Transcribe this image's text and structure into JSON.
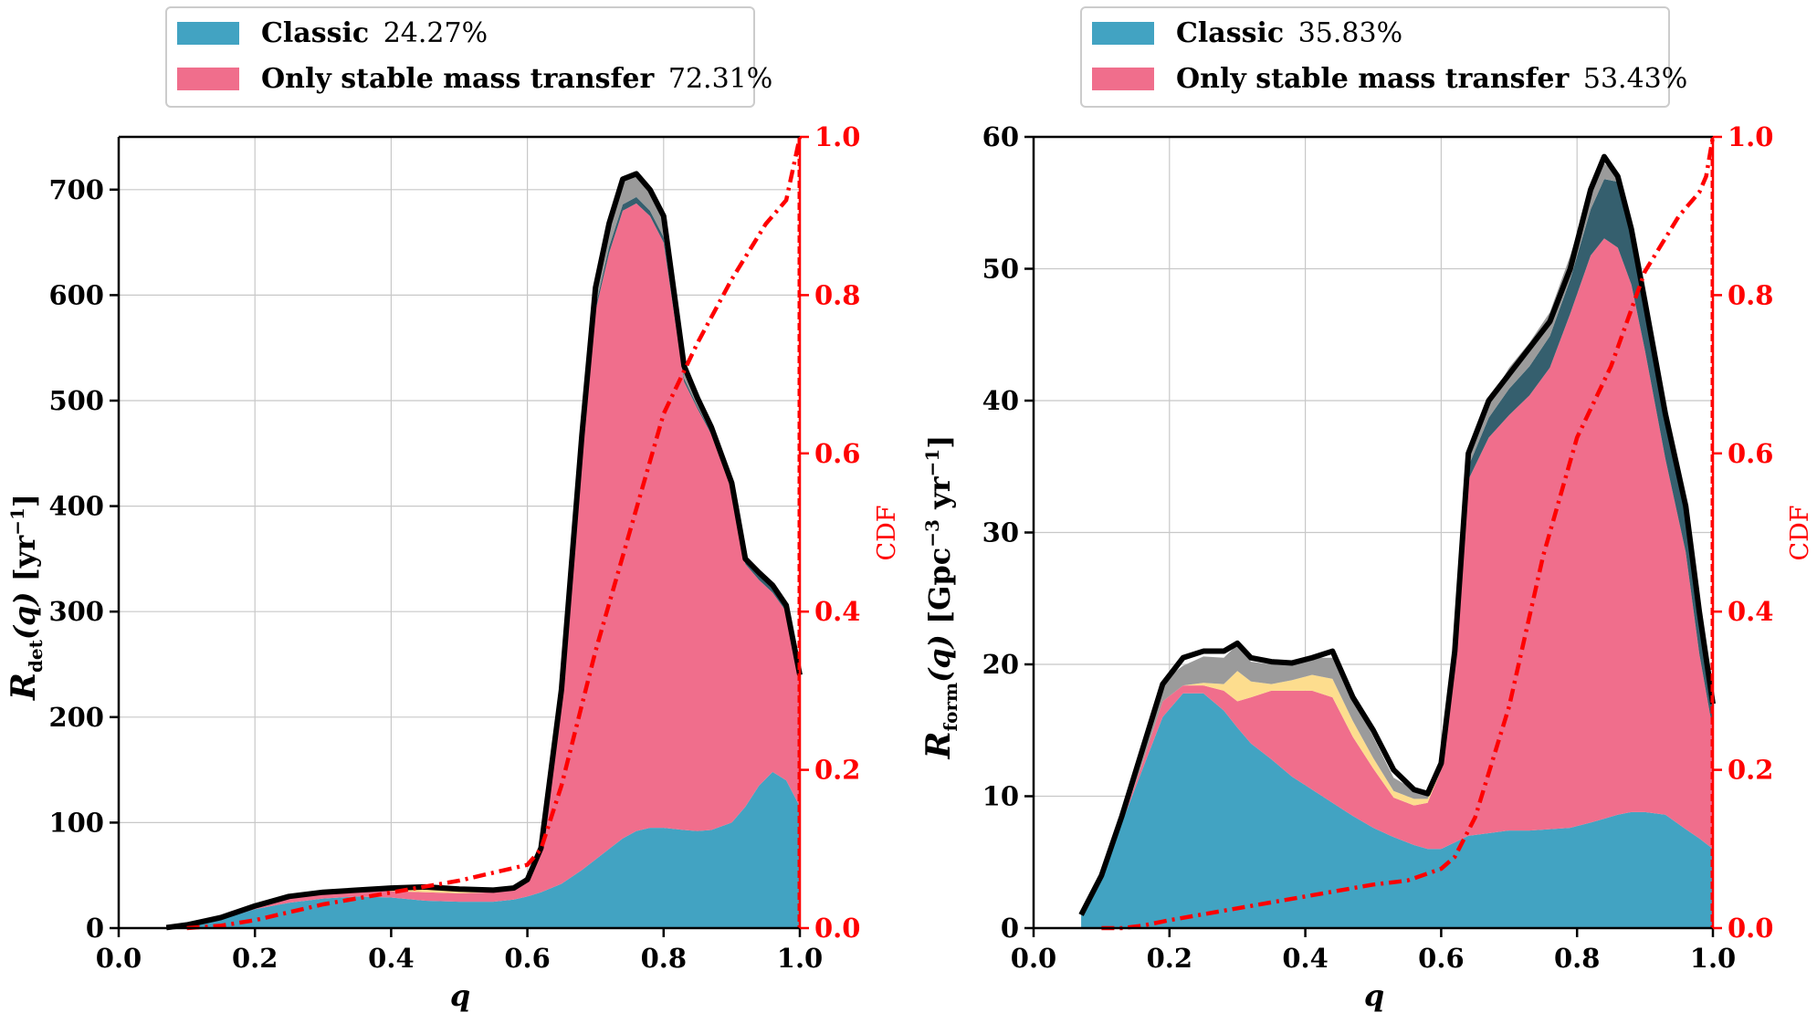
{
  "colors": {
    "classic": "#42a3c2",
    "stable": "#f06e8c",
    "yellow": "#fddd8e",
    "dark": "#355f6e",
    "grey": "#9b9b9b",
    "total": "#000000",
    "cdf": "#ff0000",
    "grid": "#c8c8c8"
  },
  "chart_data": [
    {
      "type": "area",
      "panel": "left",
      "ylabel": "R_det(q) [yr^-1]",
      "xlabel": "q",
      "y2label": "CDF",
      "xlim": [
        0.0,
        1.0
      ],
      "ylim": [
        0,
        750
      ],
      "y2lim": [
        0.0,
        1.0
      ],
      "xticks": [
        "0.0",
        "0.2",
        "0.4",
        "0.6",
        "0.8",
        "1.0"
      ],
      "yticks": [
        "0",
        "100",
        "200",
        "300",
        "400",
        "500",
        "600",
        "700"
      ],
      "y2ticks": [
        "0.0",
        "0.2",
        "0.4",
        "0.6",
        "0.8",
        "1.0"
      ],
      "grid": true,
      "legend": {
        "placement": "above",
        "entries": [
          {
            "label": "Classic",
            "value": "24.27%",
            "color_key": "classic"
          },
          {
            "label": "Only stable mass transfer",
            "value": "72.31%",
            "color_key": "stable"
          }
        ]
      },
      "x": [
        0.07,
        0.1,
        0.15,
        0.2,
        0.25,
        0.3,
        0.35,
        0.4,
        0.45,
        0.5,
        0.55,
        0.58,
        0.6,
        0.62,
        0.65,
        0.68,
        0.7,
        0.72,
        0.74,
        0.76,
        0.78,
        0.8,
        0.83,
        0.85,
        0.87,
        0.9,
        0.92,
        0.94,
        0.96,
        0.98,
        1.0
      ],
      "series": [
        {
          "name": "Classic",
          "color_key": "classic",
          "values": [
            0,
            2,
            8,
            18,
            24,
            28,
            30,
            29,
            26,
            25,
            25,
            27,
            30,
            34,
            42,
            55,
            65,
            75,
            85,
            92,
            95,
            95,
            93,
            92,
            93,
            100,
            115,
            135,
            148,
            140,
            115
          ]
        },
        {
          "name": "Only stable mass transfer",
          "color_key": "stable",
          "values": [
            0,
            0,
            0,
            2,
            5,
            6,
            5,
            6,
            8,
            8,
            9,
            10,
            15,
            40,
            180,
            400,
            520,
            565,
            595,
            595,
            580,
            555,
            425,
            400,
            375,
            315,
            230,
            195,
            170,
            160,
            120
          ]
        },
        {
          "name": "",
          "color_key": "yellow",
          "values": [
            0,
            0,
            0,
            0,
            0,
            0,
            0,
            2,
            4,
            3,
            1,
            0,
            0,
            0,
            0,
            0,
            0,
            0,
            0,
            0,
            0,
            0,
            0,
            0,
            0,
            0,
            0,
            0,
            0,
            0,
            0
          ]
        },
        {
          "name": "",
          "color_key": "dark",
          "values": [
            0,
            0,
            0,
            0,
            0,
            0,
            0,
            0,
            0,
            0,
            0,
            0,
            0,
            0,
            0,
            2,
            4,
            6,
            6,
            6,
            5,
            5,
            3,
            2,
            2,
            2,
            2,
            5,
            5,
            4,
            3
          ]
        },
        {
          "name": "",
          "color_key": "grey",
          "values": [
            0,
            0,
            0,
            0,
            0,
            0,
            0,
            1,
            1,
            1,
            1,
            1,
            1,
            2,
            4,
            10,
            18,
            22,
            24,
            22,
            20,
            20,
            12,
            8,
            5,
            5,
            3,
            2,
            2,
            2,
            2
          ]
        }
      ],
      "total": [
        0.5,
        3,
        10,
        21,
        30,
        34,
        36,
        38,
        39,
        37,
        36,
        38,
        46,
        76,
        226,
        467,
        607,
        668,
        710,
        715,
        700,
        675,
        533,
        502,
        475,
        422,
        350,
        337,
        325,
        306,
        240
      ],
      "cdf": {
        "x": [
          0.1,
          0.15,
          0.2,
          0.3,
          0.4,
          0.5,
          0.55,
          0.6,
          0.62,
          0.65,
          0.7,
          0.75,
          0.8,
          0.85,
          0.9,
          0.95,
          0.98,
          0.99,
          1.0
        ],
        "values": [
          0.0,
          0.003,
          0.01,
          0.03,
          0.045,
          0.06,
          0.07,
          0.08,
          0.1,
          0.18,
          0.35,
          0.5,
          0.65,
          0.74,
          0.82,
          0.89,
          0.92,
          0.96,
          1.0
        ]
      }
    },
    {
      "type": "area",
      "panel": "right",
      "ylabel": "R_form(q) [Gpc^-3 yr^-1]",
      "xlabel": "q",
      "y2label": "CDF",
      "xlim": [
        0.0,
        1.0
      ],
      "ylim": [
        0,
        60
      ],
      "y2lim": [
        0.0,
        1.0
      ],
      "xticks": [
        "0.0",
        "0.2",
        "0.4",
        "0.6",
        "0.8",
        "1.0"
      ],
      "yticks": [
        "0",
        "10",
        "20",
        "30",
        "40",
        "50",
        "60"
      ],
      "y2ticks": [
        "0.0",
        "0.2",
        "0.4",
        "0.6",
        "0.8",
        "1.0"
      ],
      "grid": true,
      "legend": {
        "placement": "above",
        "entries": [
          {
            "label": "Classic",
            "value": "35.83%",
            "color_key": "classic"
          },
          {
            "label": "Only stable mass transfer",
            "value": "53.43%",
            "color_key": "stable"
          }
        ]
      },
      "x": [
        0.07,
        0.1,
        0.13,
        0.16,
        0.19,
        0.22,
        0.25,
        0.28,
        0.3,
        0.32,
        0.35,
        0.38,
        0.41,
        0.44,
        0.47,
        0.5,
        0.53,
        0.56,
        0.58,
        0.6,
        0.62,
        0.64,
        0.67,
        0.7,
        0.73,
        0.76,
        0.79,
        0.82,
        0.84,
        0.86,
        0.88,
        0.9,
        0.93,
        0.96,
        0.98,
        1.0
      ],
      "series": [
        {
          "name": "Classic",
          "color_key": "classic",
          "values": [
            1,
            4,
            8,
            12,
            16,
            17.8,
            17.8,
            16.5,
            15.2,
            14,
            12.8,
            11.5,
            10.5,
            9.5,
            8.5,
            7.6,
            6.9,
            6.3,
            6,
            6,
            6.5,
            7,
            7.2,
            7.4,
            7.4,
            7.5,
            7.6,
            8.0,
            8.3,
            8.6,
            8.8,
            8.8,
            8.6,
            7.5,
            6.8,
            6
          ]
        },
        {
          "name": "Only stable mass transfer",
          "color_key": "stable",
          "values": [
            0,
            0,
            0,
            0.5,
            1.2,
            0.6,
            0.6,
            1.5,
            2,
            3.5,
            5.2,
            6.5,
            7.5,
            8,
            6,
            4.5,
            3,
            3,
            3.5,
            6,
            14,
            27,
            30,
            31.5,
            33,
            35,
            39,
            43,
            44,
            43,
            40,
            35,
            27,
            21,
            14,
            9
          ]
        },
        {
          "name": "",
          "color_key": "yellow",
          "values": [
            0,
            0,
            0,
            0,
            0,
            0,
            0.2,
            0.5,
            2.3,
            1.2,
            0.5,
            0.8,
            1.2,
            1.4,
            1.2,
            0.8,
            0.5,
            0.5,
            0.3,
            0,
            0,
            0,
            0,
            0,
            0,
            0,
            0,
            0,
            0,
            0,
            0,
            0,
            0,
            0,
            0,
            0
          ]
        },
        {
          "name": "",
          "color_key": "dark",
          "values": [
            0,
            0,
            0,
            0,
            0,
            0,
            0,
            0,
            0,
            0,
            0,
            0,
            0,
            0,
            0,
            0,
            0,
            0,
            0,
            0,
            0.3,
            1.0,
            1.5,
            2.0,
            2.2,
            2.4,
            2.6,
            3.5,
            4.5,
            5.0,
            4.6,
            4.0,
            3.8,
            3.5,
            3.2,
            2.5
          ]
        },
        {
          "name": "",
          "color_key": "grey",
          "values": [
            0,
            0,
            0.5,
            1.0,
            1.5,
            1.5,
            2.0,
            2.0,
            2.0,
            1.5,
            1.5,
            1.3,
            1.3,
            1.6,
            1.8,
            1.6,
            1.0,
            0.7,
            0.5,
            0.5,
            0.5,
            0.8,
            1.2,
            1.6,
            1.8,
            1.8,
            1.8,
            1.5,
            1.2,
            0.5,
            0.3,
            0.2,
            0.2,
            0.2,
            0.2,
            0.2
          ]
        }
      ],
      "total": [
        1,
        4,
        8.5,
        13.5,
        18.5,
        20.5,
        21,
        21,
        21.6,
        20.5,
        20.2,
        20.1,
        20.5,
        21,
        17.5,
        15,
        12,
        10.5,
        10.2,
        12.5,
        21,
        36,
        40,
        42,
        44,
        46,
        50,
        56,
        58.5,
        57,
        53,
        47.5,
        39,
        32,
        24,
        17
      ],
      "cdf": {
        "x": [
          0.1,
          0.13,
          0.16,
          0.2,
          0.3,
          0.4,
          0.5,
          0.55,
          0.6,
          0.62,
          0.65,
          0.7,
          0.75,
          0.8,
          0.85,
          0.9,
          0.95,
          0.98,
          0.99,
          1.0
        ],
        "values": [
          0.0,
          0.0,
          0.003,
          0.01,
          0.025,
          0.04,
          0.055,
          0.06,
          0.075,
          0.09,
          0.14,
          0.28,
          0.47,
          0.62,
          0.71,
          0.83,
          0.9,
          0.93,
          0.95,
          1.0
        ]
      }
    }
  ]
}
